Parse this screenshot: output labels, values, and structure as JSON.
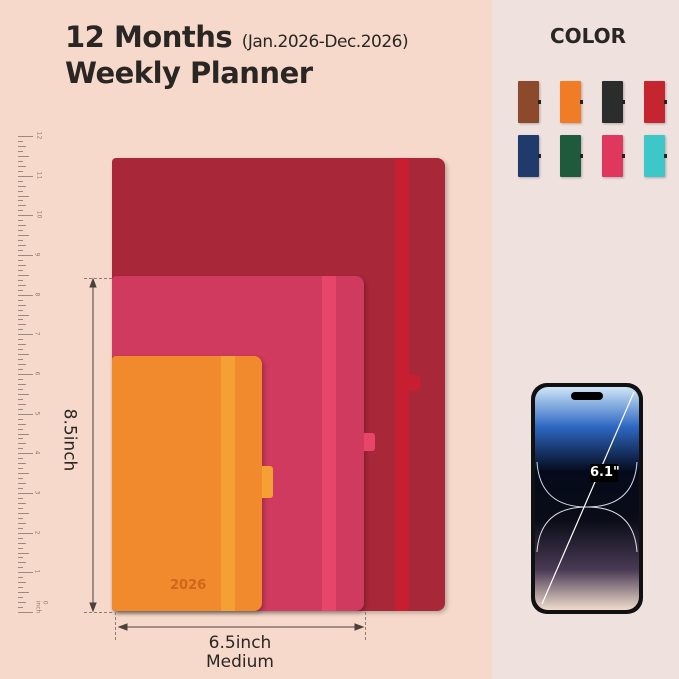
{
  "header": {
    "title_line1": "12 Months",
    "date_range": "(Jan.2026-Dec.2026)",
    "title_line2": "Weekly Planner"
  },
  "colors": {
    "title": "COLOR",
    "swatches": [
      "#8b4a2b",
      "#f07d25",
      "#2b2d2c",
      "#c4252f",
      "#1f3a6b",
      "#1f5a3c",
      "#e0375f",
      "#3ec7c9"
    ]
  },
  "notebooks": {
    "large": {
      "color": "#a8283a",
      "band": "#c81e32"
    },
    "medium": {
      "color": "#cf3a5e",
      "band": "#e8456b"
    },
    "small": {
      "color": "#f08a2d",
      "band": "#f5a034",
      "year": "2026"
    }
  },
  "dimensions": {
    "height": "8.5inch",
    "width": "6.5inch",
    "size_name": "Medium"
  },
  "ruler": {
    "labels": [
      "0 inch",
      "1",
      "2",
      "3",
      "4",
      "5",
      "6",
      "7",
      "8",
      "9",
      "10",
      "11",
      "12"
    ]
  },
  "phone": {
    "screen_size": "6.1\""
  }
}
